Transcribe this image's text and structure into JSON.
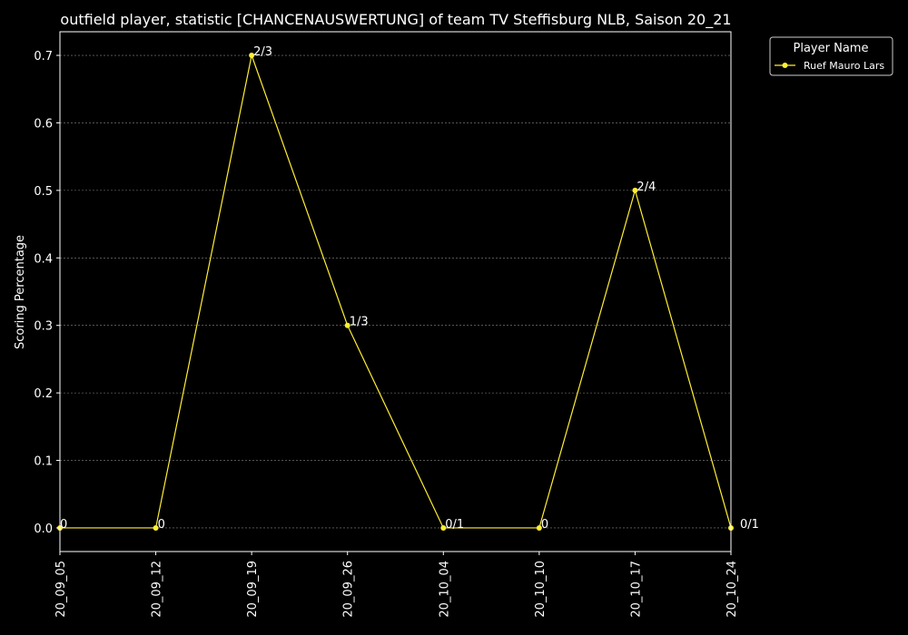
{
  "chart_data": {
    "type": "line",
    "title": "outfield player, statistic [CHANCENAUSWERTUNG] of team TV Steffisburg NLB, Saison 20_21",
    "xlabel": "",
    "ylabel": "Scoring Percentage",
    "categories": [
      "20_09_05",
      "20_09_12",
      "20_09_19",
      "20_09_26",
      "20_10_04",
      "20_10_10",
      "20_10_17",
      "20_10_24"
    ],
    "series": [
      {
        "name": "Ruef Mauro Lars",
        "values": [
          0.0,
          0.0,
          0.7,
          0.3,
          0.0,
          0.0,
          0.5,
          0.0
        ],
        "point_labels": [
          "0",
          "0",
          "2/3",
          "1/3",
          "0/1",
          "0",
          "2/4",
          "0/1"
        ],
        "color": "#ffee33"
      }
    ],
    "ylim": [
      -0.035,
      0.735
    ],
    "yticks": [
      0.0,
      0.1,
      0.2,
      0.3,
      0.4,
      0.5,
      0.6,
      0.7
    ],
    "ytick_labels": [
      "0.0",
      "0.1",
      "0.2",
      "0.3",
      "0.4",
      "0.5",
      "0.6",
      "0.7"
    ],
    "grid": true,
    "legend": {
      "title": "Player Name",
      "placement": "upper-right-outside"
    },
    "colors": {
      "background": "#000000",
      "axes": "#ffffff",
      "grid": "#888888",
      "line": "#ffee33"
    }
  }
}
